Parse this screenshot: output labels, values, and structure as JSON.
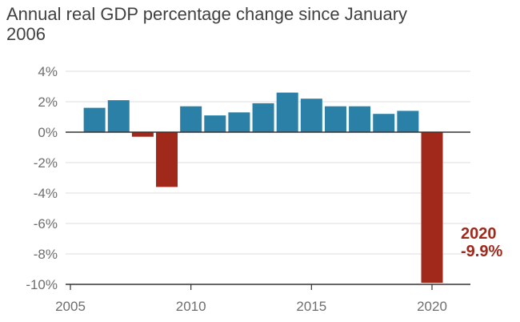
{
  "chart_data": {
    "type": "bar",
    "title": "Annual real GDP percentage change since January 2006",
    "xlabel": "",
    "ylabel": "",
    "x": [
      2006,
      2007,
      2008,
      2009,
      2010,
      2011,
      2012,
      2013,
      2014,
      2015,
      2016,
      2017,
      2018,
      2019,
      2020
    ],
    "values": [
      1.6,
      2.1,
      -0.3,
      -3.6,
      1.7,
      1.1,
      1.3,
      1.9,
      2.6,
      2.2,
      1.7,
      1.7,
      1.2,
      1.4,
      -9.9
    ],
    "ylim": [
      -10,
      4
    ],
    "xlim": [
      2005,
      2021
    ],
    "yticks": [
      "4%",
      "2%",
      "0%",
      "-2%",
      "-4%",
      "-6%",
      "-8%",
      "-10%"
    ],
    "ytick_values": [
      4,
      2,
      0,
      -2,
      -4,
      -6,
      -8,
      -10
    ],
    "xticks": [
      "2005",
      "2010",
      "2015",
      "2020"
    ],
    "xtick_values": [
      2005,
      2010,
      2015,
      2020
    ],
    "grid": true,
    "colors": {
      "positive": "#2a80a6",
      "negative": "#a0291c",
      "annotation": "#a0291c",
      "grid": "#dcdcdc",
      "zero_line": "#333333",
      "axis": "#333333"
    },
    "annotation": {
      "year": "2020",
      "value": "-9.9%"
    }
  }
}
